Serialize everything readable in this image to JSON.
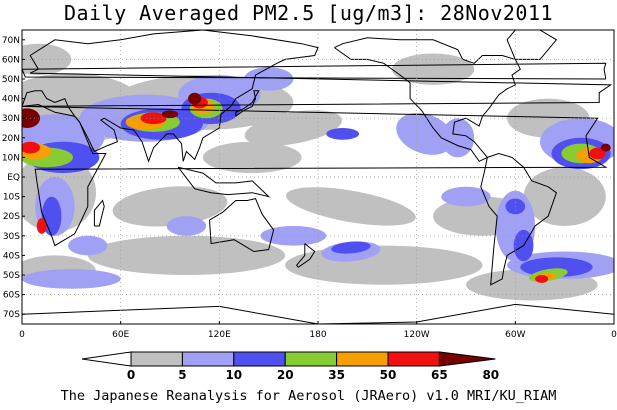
{
  "title": "Daily Averaged PM2.5 [ug/m3]: 28Nov2011",
  "footer": "The Japanese Reanalysis for Aerosol (JRAero) v1.0 MRI/KU_RIAM",
  "map": {
    "lon_range": [
      0,
      360
    ],
    "lat_range": [
      -75,
      75
    ],
    "lat_ticks": [
      {
        "lat": 70,
        "label": "70N"
      },
      {
        "lat": 60,
        "label": "60N"
      },
      {
        "lat": 50,
        "label": "50N"
      },
      {
        "lat": 40,
        "label": "40N"
      },
      {
        "lat": 30,
        "label": "30N"
      },
      {
        "lat": 20,
        "label": "20N"
      },
      {
        "lat": 10,
        "label": "10N"
      },
      {
        "lat": 0,
        "label": "EQ"
      },
      {
        "lat": -10,
        "label": "10S"
      },
      {
        "lat": -20,
        "label": "20S"
      },
      {
        "lat": -30,
        "label": "30S"
      },
      {
        "lat": -40,
        "label": "40S"
      },
      {
        "lat": -50,
        "label": "50S"
      },
      {
        "lat": -60,
        "label": "60S"
      },
      {
        "lat": -70,
        "label": "70S"
      }
    ],
    "lon_ticks": [
      {
        "lon": 0,
        "label": "0"
      },
      {
        "lon": 60,
        "label": "60E"
      },
      {
        "lon": 120,
        "label": "120E"
      },
      {
        "lon": 180,
        "label": "180"
      },
      {
        "lon": 240,
        "label": "120W"
      },
      {
        "lon": 300,
        "label": "60W"
      },
      {
        "lon": 360,
        "label": "0"
      }
    ],
    "grid": true
  },
  "colorbar": {
    "levels": [
      "0",
      "5",
      "10",
      "20",
      "35",
      "50",
      "65",
      "80"
    ],
    "colors": [
      "#ffffff",
      "#c0c0c0",
      "#a0a0f5",
      "#5050f0",
      "#88cc33",
      "#f5a000",
      "#f01010",
      "#780000"
    ]
  }
}
